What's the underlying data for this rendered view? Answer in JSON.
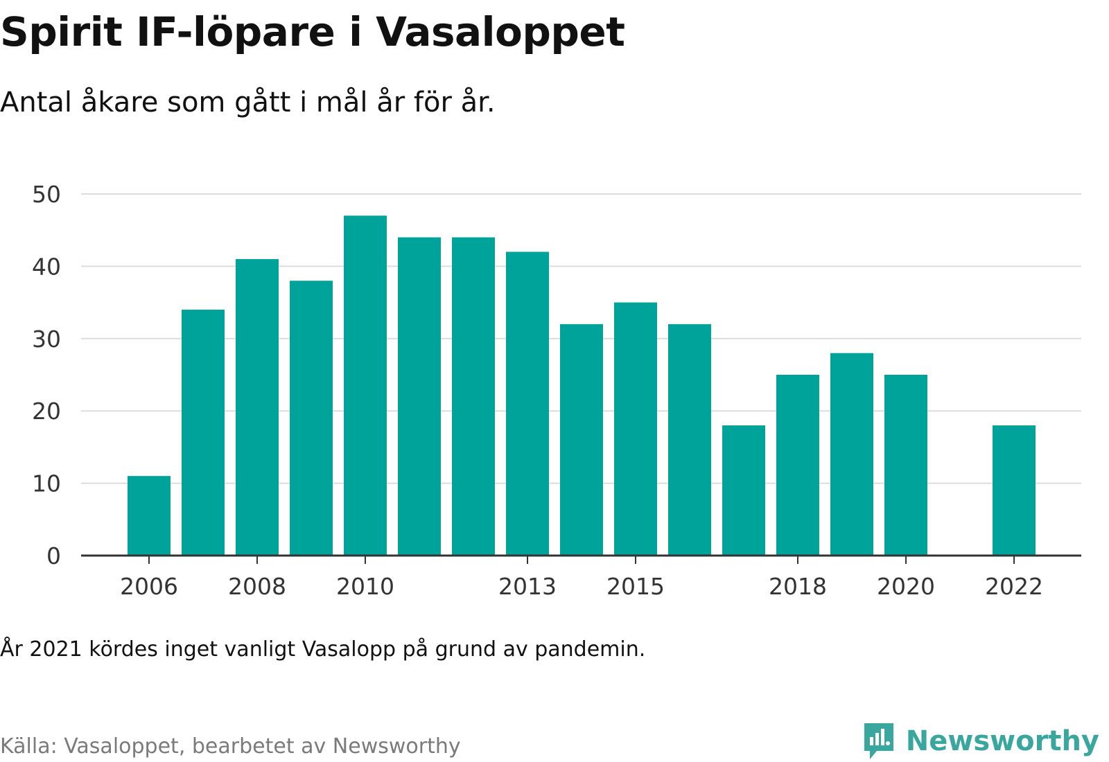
{
  "header": {
    "title": "Spirit IF-löpare i Vasaloppet",
    "subtitle": "Antal åkare som gått i mål år för år."
  },
  "footer": {
    "note": "År 2021 kördes inget vanligt Vasalopp på grund av pandemin.",
    "source": "Källa: Vasaloppet, bearbetet av Newsworthy",
    "brand": "Newsworthy"
  },
  "colors": {
    "bar": "#00a39a",
    "grid": "#dcdcdc",
    "axis": "#333333",
    "brand": "#3aa79f"
  },
  "chart_data": {
    "type": "bar",
    "title": "Spirit IF-löpare i Vasaloppet",
    "subtitle": "Antal åkare som gått i mål år för år.",
    "xlabel": "",
    "ylabel": "",
    "ylim": [
      0,
      50
    ],
    "yticks": [
      0,
      10,
      20,
      30,
      40,
      50
    ],
    "xticks": [
      2006,
      2008,
      2010,
      2013,
      2015,
      2018,
      2020,
      2022
    ],
    "grid": true,
    "categories": [
      2006,
      2007,
      2008,
      2009,
      2010,
      2011,
      2012,
      2013,
      2014,
      2015,
      2016,
      2017,
      2018,
      2019,
      2020,
      2021,
      2022
    ],
    "values": [
      11,
      34,
      41,
      38,
      47,
      44,
      44,
      42,
      32,
      35,
      32,
      18,
      25,
      28,
      25,
      null,
      18
    ]
  }
}
